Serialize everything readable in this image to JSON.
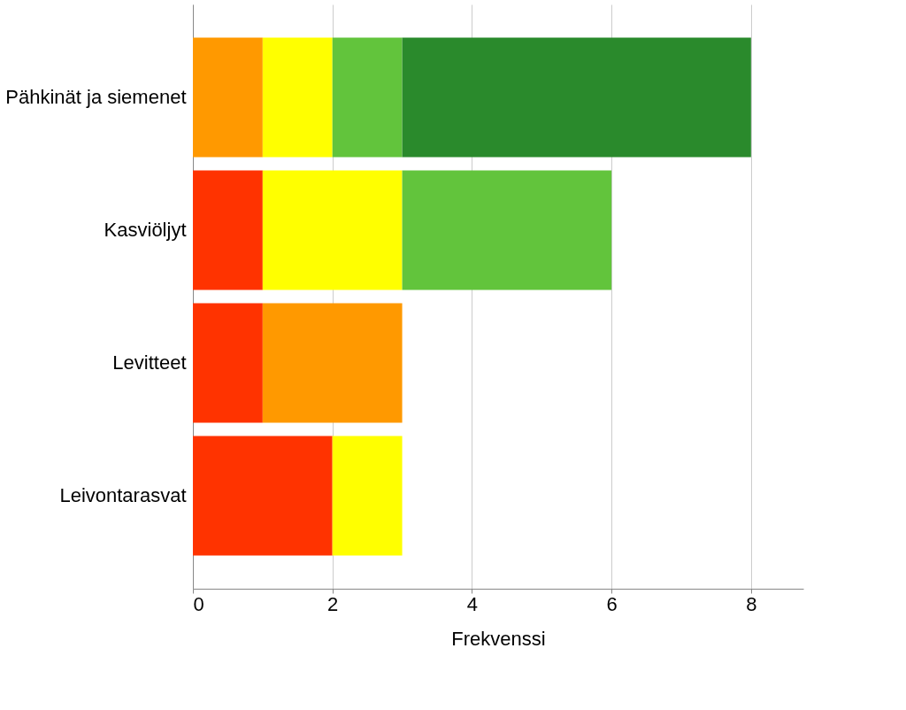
{
  "chart_data": {
    "type": "bar",
    "orientation": "horizontal",
    "stacked": true,
    "xlabel": "Frekvenssi",
    "categories": [
      "Pähkinät ja siemenet",
      "Kasviöljyt",
      "Levitteet",
      "Leivontarasvat"
    ],
    "series": [
      {
        "color": "#ff3300",
        "values": [
          null,
          1,
          1,
          2
        ]
      },
      {
        "color": "#ff9900",
        "values": [
          1,
          null,
          2,
          null
        ]
      },
      {
        "color": "#ffff00",
        "values": [
          1,
          2,
          null,
          1
        ]
      },
      {
        "color": "#62c43c",
        "values": [
          1,
          3,
          null,
          null
        ]
      },
      {
        "color": "#2a8a2c",
        "values": [
          5,
          null,
          null,
          null
        ]
      }
    ],
    "xlim": [
      0,
      8.75
    ],
    "xticks": [
      0,
      2,
      4,
      6,
      8
    ],
    "grid": "x",
    "legend": false
  }
}
